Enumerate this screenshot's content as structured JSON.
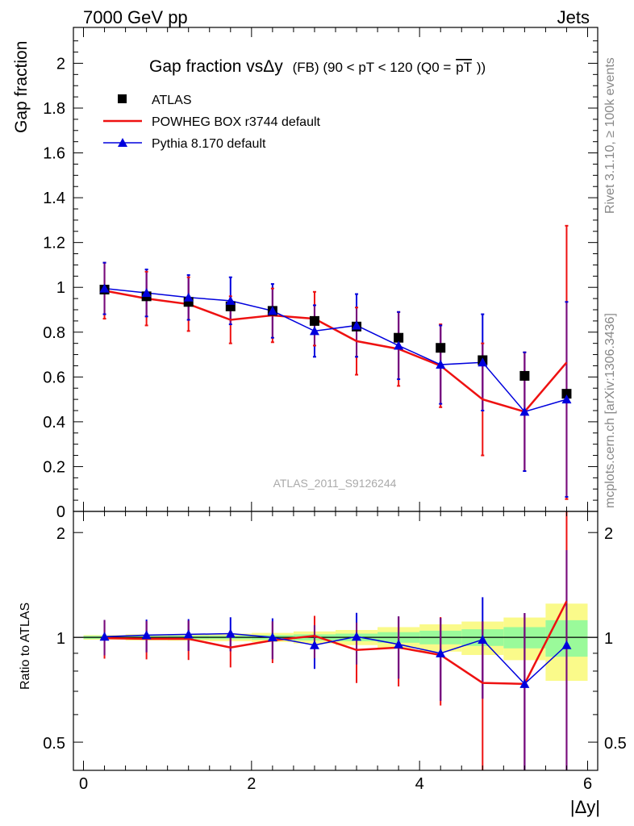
{
  "header": {
    "left": "7000 GeV pp",
    "right": "Jets"
  },
  "side": {
    "rivet": "Rivet 3.1.10, ≥ 100k events",
    "mcplots": "mcplots.cern.ch [arXiv:1306.3436]"
  },
  "watermark": "ATLAS_2011_S9126244",
  "colors": {
    "data": "#000000",
    "powheg": "#ee1111",
    "pythia": "#0000dd",
    "band_inner": "#9afa9a",
    "band_outer": "#fafa8a",
    "both_err": "#7a0a7a"
  },
  "chart_data": [
    {
      "type": "scatter",
      "title": "Gap fraction vsΔy",
      "title_suffix": "(FB)  (90 < pT < 120 (Q0 =",
      "title_q0": "pT",
      "title_end": "))",
      "ylabel": "Gap fraction",
      "xlabel": "|Δy|",
      "xlim": [
        -0.12,
        6.12
      ],
      "ylim": [
        0,
        2.16
      ],
      "yticks": [
        "0",
        "0.2",
        "0.4",
        "0.6",
        "0.8",
        "1",
        "1.2",
        "1.4",
        "1.6",
        "1.8",
        "2"
      ],
      "x": [
        0.25,
        0.75,
        1.25,
        1.75,
        2.25,
        2.75,
        3.25,
        3.75,
        4.25,
        4.75,
        5.25,
        5.75
      ],
      "series": [
        {
          "name": "ATLAS",
          "kind": "data",
          "values": [
            0.99,
            0.96,
            0.935,
            0.915,
            0.895,
            0.85,
            0.825,
            0.775,
            0.73,
            0.675,
            0.605,
            0.525
          ]
        },
        {
          "name": "POWHEG BOX r3744 default",
          "kind": "powheg",
          "values": [
            0.985,
            0.95,
            0.925,
            0.855,
            0.875,
            0.86,
            0.76,
            0.725,
            0.65,
            0.5,
            0.445,
            0.665
          ],
          "err": [
            0.125,
            0.12,
            0.12,
            0.105,
            0.12,
            0.12,
            0.15,
            0.165,
            0.185,
            0.25,
            0.265,
            0.61
          ]
        },
        {
          "name": "Pythia 8.170 default",
          "kind": "pythia",
          "values": [
            0.995,
            0.975,
            0.955,
            0.94,
            0.895,
            0.805,
            0.83,
            0.74,
            0.655,
            0.665,
            0.445,
            0.5
          ],
          "err": [
            0.115,
            0.105,
            0.1,
            0.105,
            0.12,
            0.115,
            0.14,
            0.15,
            0.175,
            0.215,
            0.265,
            0.435
          ]
        }
      ]
    },
    {
      "type": "scatter",
      "ylabel": "Ratio to ATLAS",
      "xlabel": "|Δy|",
      "xlim": [
        -0.12,
        6.12
      ],
      "ylim": [
        0.415,
        2.3
      ],
      "yticks": [
        "0.5",
        "1",
        "2"
      ],
      "xticks": [
        "0",
        "2",
        "4",
        "6"
      ],
      "x": [
        0.25,
        0.75,
        1.25,
        1.75,
        2.25,
        2.75,
        3.25,
        3.75,
        4.25,
        4.75,
        5.25,
        5.75
      ],
      "band_inner": [
        0.01,
        0.01,
        0.012,
        0.012,
        0.015,
        0.02,
        0.025,
        0.035,
        0.045,
        0.055,
        0.07,
        0.12
      ],
      "band_outer": [
        0.015,
        0.02,
        0.022,
        0.025,
        0.03,
        0.04,
        0.05,
        0.07,
        0.09,
        0.11,
        0.14,
        0.25
      ],
      "series": [
        {
          "name": "POWHEG BOX r3744 default",
          "kind": "powheg",
          "values": [
            0.995,
            0.99,
            0.99,
            0.935,
            0.98,
            1.01,
            0.92,
            0.935,
            0.89,
            0.74,
            0.735,
            1.27
          ]
        },
        {
          "name": "Pythia 8.170 default",
          "kind": "pythia",
          "values": [
            1.005,
            1.015,
            1.02,
            1.025,
            1.0,
            0.95,
            1.005,
            0.955,
            0.9,
            0.985,
            0.735,
            0.95
          ]
        }
      ]
    }
  ]
}
